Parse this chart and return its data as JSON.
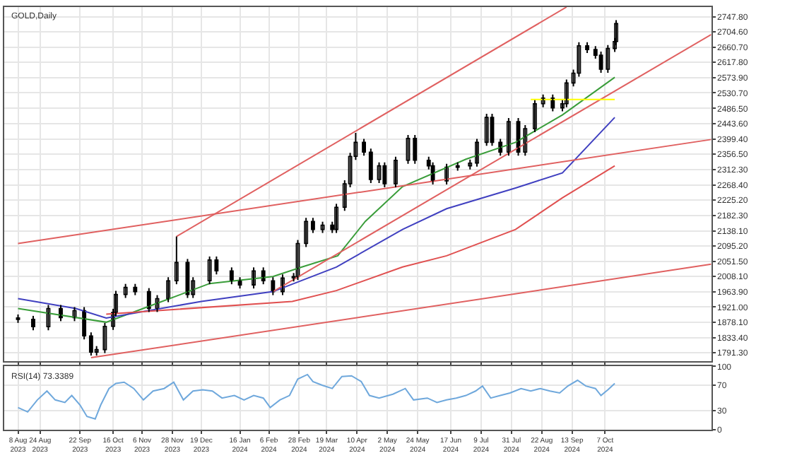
{
  "chart_data": [
    {
      "type": "candlestick",
      "title": "GOLD,Daily",
      "x": [
        "2023-08-08",
        "2023-08-19",
        "2023-08-30",
        "2023-09-08",
        "2023-09-18",
        "2023-09-25",
        "2023-09-30",
        "2023-10-04",
        "2023-10-10",
        "2023-10-16",
        "2023-10-18",
        "2023-10-25",
        "2023-11-01",
        "2023-11-11",
        "2023-11-17",
        "2023-11-25",
        "2023-12-01",
        "2023-12-09",
        "2023-12-13",
        "2023-12-25",
        "2023-12-30",
        "2024-01-10",
        "2024-01-16",
        "2024-01-26",
        "2024-02-02",
        "2024-02-09",
        "2024-02-16",
        "2024-02-24",
        "2024-02-27",
        "2024-03-04",
        "2024-03-09",
        "2024-03-16",
        "2024-03-23",
        "2024-03-26",
        "2024-04-01",
        "2024-04-05",
        "2024-04-09",
        "2024-04-15",
        "2024-04-20",
        "2024-04-26",
        "2024-04-30",
        "2024-05-08",
        "2024-05-17",
        "2024-05-22",
        "2024-06-01",
        "2024-06-04",
        "2024-06-14",
        "2024-06-22",
        "2024-07-01",
        "2024-07-06",
        "2024-07-13",
        "2024-07-17",
        "2024-07-23",
        "2024-07-29",
        "2024-08-05",
        "2024-08-10",
        "2024-08-17",
        "2024-08-23",
        "2024-08-30",
        "2024-09-06",
        "2024-09-09",
        "2024-09-14",
        "2024-09-18",
        "2024-09-24",
        "2024-09-30",
        "2024-10-04",
        "2024-10-09",
        "2024-10-14",
        "2024-10-15"
      ],
      "ohlc": [
        [
          1890,
          1900,
          1876,
          1886
        ],
        [
          1886,
          1896,
          1855,
          1865
        ],
        [
          1865,
          1927,
          1855,
          1917
        ],
        [
          1917,
          1927,
          1881,
          1891
        ],
        [
          1891,
          1921,
          1881,
          1911
        ],
        [
          1911,
          1921,
          1829,
          1839
        ],
        [
          1839,
          1849,
          1783,
          1793
        ],
        [
          1793,
          1810,
          1783,
          1800
        ],
        [
          1800,
          1876,
          1790,
          1866
        ],
        [
          1866,
          1916,
          1856,
          1906
        ],
        [
          1906,
          1967,
          1896,
          1957
        ],
        [
          1957,
          1987,
          1947,
          1977
        ],
        [
          1977,
          1987,
          1955,
          1965
        ],
        [
          1965,
          1975,
          1907,
          1917
        ],
        [
          1917,
          1955,
          1907,
          1945
        ],
        [
          1945,
          2006,
          1935,
          1996
        ],
        [
          1996,
          2122,
          1986,
          2048
        ],
        [
          2048,
          2058,
          1947,
          1957
        ],
        [
          1957,
          2006,
          1947,
          1996
        ],
        [
          1996,
          2065,
          1986,
          2055
        ],
        [
          2055,
          2065,
          2014,
          2024
        ],
        [
          2024,
          2034,
          1986,
          1996
        ],
        [
          1996,
          2006,
          1974,
          1984
        ],
        [
          1984,
          2034,
          1974,
          2024
        ],
        [
          2024,
          2034,
          1986,
          1996
        ],
        [
          1996,
          2006,
          1955,
          1965
        ],
        [
          1965,
          2014,
          1955,
          2004
        ],
        [
          2004,
          2018,
          1994,
          2008
        ],
        [
          2008,
          2112,
          1998,
          2102
        ],
        [
          2102,
          2175,
          2092,
          2165
        ],
        [
          2165,
          2175,
          2132,
          2142
        ],
        [
          2142,
          2164,
          2132,
          2154
        ],
        [
          2154,
          2164,
          2132,
          2142
        ],
        [
          2142,
          2215,
          2132,
          2205
        ],
        [
          2205,
          2282,
          2195,
          2272
        ],
        [
          2272,
          2360,
          2262,
          2350
        ],
        [
          2350,
          2417,
          2340,
          2390
        ],
        [
          2390,
          2400,
          2352,
          2362
        ],
        [
          2362,
          2372,
          2274,
          2284
        ],
        [
          2284,
          2333,
          2274,
          2323
        ],
        [
          2323,
          2333,
          2262,
          2272
        ],
        [
          2272,
          2349,
          2262,
          2339
        ],
        [
          2339,
          2411,
          2329,
          2401
        ],
        [
          2401,
          2411,
          2329,
          2339
        ],
        [
          2339,
          2349,
          2313,
          2323
        ],
        [
          2323,
          2333,
          2270,
          2280
        ],
        [
          2280,
          2329,
          2270,
          2319
        ],
        [
          2319,
          2333,
          2309,
          2323
        ],
        [
          2323,
          2341,
          2313,
          2331
        ],
        [
          2331,
          2400,
          2321,
          2390
        ],
        [
          2390,
          2471,
          2380,
          2461
        ],
        [
          2461,
          2471,
          2380,
          2390
        ],
        [
          2390,
          2400,
          2352,
          2362
        ],
        [
          2362,
          2459,
          2352,
          2449
        ],
        [
          2449,
          2459,
          2352,
          2362
        ],
        [
          2362,
          2439,
          2352,
          2429
        ],
        [
          2429,
          2510,
          2419,
          2500
        ],
        [
          2500,
          2526,
          2490,
          2516
        ],
        [
          2516,
          2526,
          2478,
          2488
        ],
        [
          2488,
          2510,
          2478,
          2500
        ],
        [
          2500,
          2569,
          2490,
          2559
        ],
        [
          2559,
          2597,
          2549,
          2587
        ],
        [
          2587,
          2675,
          2577,
          2665
        ],
        [
          2665,
          2675,
          2644,
          2654
        ],
        [
          2654,
          2664,
          2628,
          2638
        ],
        [
          2638,
          2648,
          2588,
          2598
        ],
        [
          2598,
          2667,
          2588,
          2657
        ],
        [
          2657,
          2687,
          2647,
          2677
        ],
        [
          2677,
          2738,
          2667,
          2728
        ]
      ],
      "series": [
        {
          "type": "line",
          "color": "#3a9d3a",
          "x": [
            "2023-08-08",
            "2023-10-11",
            "2023-11-15",
            "2023-12-25",
            "2024-02-09",
            "2024-03-01",
            "2024-03-27",
            "2024-04-16",
            "2024-05-13",
            "2024-06-28",
            "2024-08-03",
            "2024-09-06",
            "2024-10-14"
          ],
          "values": [
            1917,
            1878,
            1929,
            1988,
            2008,
            2035,
            2067,
            2165,
            2264,
            2342,
            2390,
            2468,
            2575
          ]
        },
        {
          "type": "line",
          "color": "#4040c0",
          "x": [
            "2023-08-08",
            "2023-09-19",
            "2023-10-11",
            "2023-12-19",
            "2024-02-09",
            "2024-03-26",
            "2024-05-13",
            "2024-06-14",
            "2024-08-03",
            "2024-09-06",
            "2024-10-14"
          ],
          "values": [
            1945,
            1917,
            1890,
            1937,
            1965,
            2035,
            2142,
            2201,
            2260,
            2303,
            2461
          ]
        },
        {
          "type": "line",
          "color": "#e05050",
          "x": [
            "2023-10-11",
            "2024-02-23",
            "2024-03-26",
            "2024-05-13",
            "2024-06-14",
            "2024-08-03",
            "2024-09-06",
            "2024-10-14"
          ],
          "values": [
            1901,
            1937,
            1968,
            2035,
            2067,
            2142,
            2232,
            2323
          ]
        },
        {
          "type": "line",
          "color": "#e06060",
          "x": [
            "2023-09-30",
            "2024-12-23"
          ],
          "values": [
            1777,
            2043
          ]
        },
        {
          "type": "line",
          "color": "#e06060",
          "x": [
            "2023-08-08",
            "2024-12-23"
          ],
          "values": [
            2102,
            2398
          ]
        },
        {
          "type": "line",
          "color": "#e06060",
          "x": [
            "2023-12-01",
            "2024-09-09"
          ],
          "values": [
            2122,
            2775
          ]
        },
        {
          "type": "line",
          "color": "#e06060",
          "x": [
            "2024-02-09",
            "2024-12-23"
          ],
          "values": [
            1965,
            2697
          ]
        },
        {
          "type": "line",
          "color": "#ffff00",
          "x": [
            "2024-08-14",
            "2024-10-14"
          ],
          "values": [
            2512,
            2512
          ]
        }
      ],
      "xlim": [
        "2023-07-29",
        "2024-12-23"
      ],
      "ylim": [
        1768,
        2775
      ],
      "yticks": [
        {
          "value": 2747.8,
          "label": "2747.80"
        },
        {
          "value": 2704.6,
          "label": "2704.60"
        },
        {
          "value": 2660.7,
          "label": "2660.70"
        },
        {
          "value": 2617.8,
          "label": "2617.80"
        },
        {
          "value": 2573.9,
          "label": "2573.90"
        },
        {
          "value": 2530.7,
          "label": "2530.70"
        },
        {
          "value": 2486.5,
          "label": "2486.50"
        },
        {
          "value": 2443.6,
          "label": "2443.60"
        },
        {
          "value": 2399.4,
          "label": "2399.40"
        },
        {
          "value": 2356.5,
          "label": "2356.50"
        },
        {
          "value": 2312.3,
          "label": "2312.30"
        },
        {
          "value": 2268.4,
          "label": "2268.40"
        },
        {
          "value": 2225.2,
          "label": "2225.20"
        },
        {
          "value": 2182.3,
          "label": "2182.30"
        },
        {
          "value": 2138.1,
          "label": "2138.10"
        },
        {
          "value": 2095.2,
          "label": "2095.20"
        },
        {
          "value": 2051.5,
          "label": "2051.50"
        },
        {
          "value": 2008.1,
          "label": "2008.10"
        },
        {
          "value": 1963.9,
          "label": "1963.90"
        },
        {
          "value": 1921.0,
          "label": "1921.00"
        },
        {
          "value": 1878.1,
          "label": "1878.10"
        },
        {
          "value": 1833.4,
          "label": "1833.40"
        },
        {
          "value": 1791.3,
          "label": "1791.30"
        }
      ],
      "grid": true,
      "tick_labels": "y"
    },
    {
      "type": "line",
      "title": "RSI(14) 73.3389",
      "series": [
        {
          "color": "#6fa8dc",
          "x": [
            "2023-08-08",
            "2023-08-15",
            "2023-08-22",
            "2023-08-29",
            "2023-09-04",
            "2023-09-11",
            "2023-09-16",
            "2023-09-22",
            "2023-09-27",
            "2023-10-03",
            "2023-10-07",
            "2023-10-13",
            "2023-10-18",
            "2023-10-24",
            "2023-10-31",
            "2023-11-07",
            "2023-11-14",
            "2023-11-22",
            "2023-11-29",
            "2023-12-06",
            "2023-12-13",
            "2023-12-20",
            "2023-12-27",
            "2024-01-03",
            "2024-01-12",
            "2024-01-19",
            "2024-01-26",
            "2024-02-02",
            "2024-02-07",
            "2024-02-14",
            "2024-02-21",
            "2024-02-27",
            "2024-03-05",
            "2024-03-09",
            "2024-03-16",
            "2024-03-23",
            "2024-03-30",
            "2024-04-06",
            "2024-04-13",
            "2024-04-19",
            "2024-04-26",
            "2024-05-06",
            "2024-05-15",
            "2024-05-21",
            "2024-05-31",
            "2024-06-07",
            "2024-06-14",
            "2024-06-21",
            "2024-06-28",
            "2024-07-05",
            "2024-07-10",
            "2024-07-16",
            "2024-07-23",
            "2024-07-30",
            "2024-08-07",
            "2024-08-14",
            "2024-08-21",
            "2024-08-28",
            "2024-09-04",
            "2024-09-10",
            "2024-09-17",
            "2024-09-23",
            "2024-09-30",
            "2024-10-04",
            "2024-10-09",
            "2024-10-14"
          ],
          "values": [
            35,
            28,
            47,
            61,
            47,
            43,
            54,
            39,
            21,
            17,
            39,
            65,
            73,
            75,
            65,
            47,
            61,
            65,
            75,
            47,
            61,
            63,
            61,
            50,
            54,
            47,
            54,
            50,
            35,
            47,
            54,
            80,
            87,
            76,
            70,
            65,
            84,
            85,
            76,
            54,
            50,
            56,
            65,
            47,
            50,
            43,
            47,
            50,
            54,
            61,
            69,
            50,
            54,
            58,
            65,
            61,
            65,
            61,
            58,
            69,
            78,
            69,
            65,
            54,
            63,
            73
          ]
        }
      ],
      "xlim": [
        "2023-07-29",
        "2024-12-23"
      ],
      "ylim": [
        0,
        100
      ],
      "yticks": [
        0,
        30,
        70,
        100
      ],
      "xticks": [
        {
          "value": "2023-08-08",
          "label": "8 Aug 2023"
        },
        {
          "value": "2023-08-24",
          "label": "24 Aug 2023"
        },
        {
          "value": "2023-09-22",
          "label": "22 Sep 2023"
        },
        {
          "value": "2023-10-16",
          "label": "16 Oct 2023"
        },
        {
          "value": "2023-11-06",
          "label": "6 Nov 2023"
        },
        {
          "value": "2023-11-28",
          "label": "28 Nov 2023"
        },
        {
          "value": "2023-12-19",
          "label": "19 Dec 2023"
        },
        {
          "value": "2024-01-16",
          "label": "16 Jan 2024"
        },
        {
          "value": "2024-02-06",
          "label": "6 Feb 2024"
        },
        {
          "value": "2024-02-28",
          "label": "28 Feb 2024"
        },
        {
          "value": "2024-03-19",
          "label": "19 Mar 2024"
        },
        {
          "value": "2024-04-10",
          "label": "10 Apr 2024"
        },
        {
          "value": "2024-05-02",
          "label": "2 May 2024"
        },
        {
          "value": "2024-05-24",
          "label": "24 May 2024"
        },
        {
          "value": "2024-06-17",
          "label": "17 Jun 2024"
        },
        {
          "value": "2024-07-09",
          "label": "9 Jul 2024"
        },
        {
          "value": "2024-07-31",
          "label": "31 Jul 2024"
        },
        {
          "value": "2024-08-22",
          "label": "22 Aug 2024"
        },
        {
          "value": "2024-09-13",
          "label": "13 Sep 2024"
        },
        {
          "value": "2024-10-07",
          "label": "7 Oct 2024"
        }
      ],
      "grid": true
    }
  ]
}
